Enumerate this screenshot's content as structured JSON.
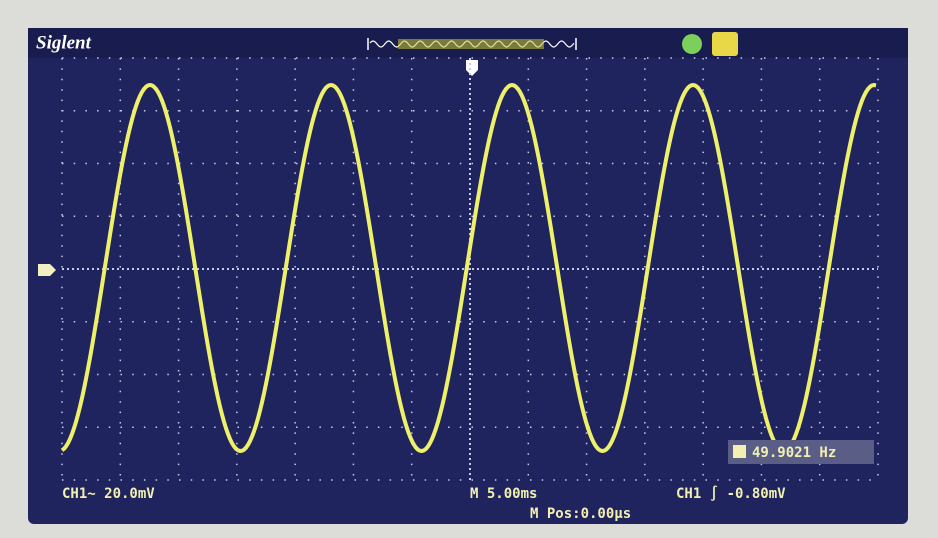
{
  "brand": "Siglent",
  "status": {
    "channel": "CH1~ 20.0mV",
    "timebase": "M 5.00ms",
    "position": "M Pos:0.00μs",
    "trigger": "CH1 ∫ -0.80mV"
  },
  "measurement": {
    "frequency": "49.9021 Hz"
  }
}
